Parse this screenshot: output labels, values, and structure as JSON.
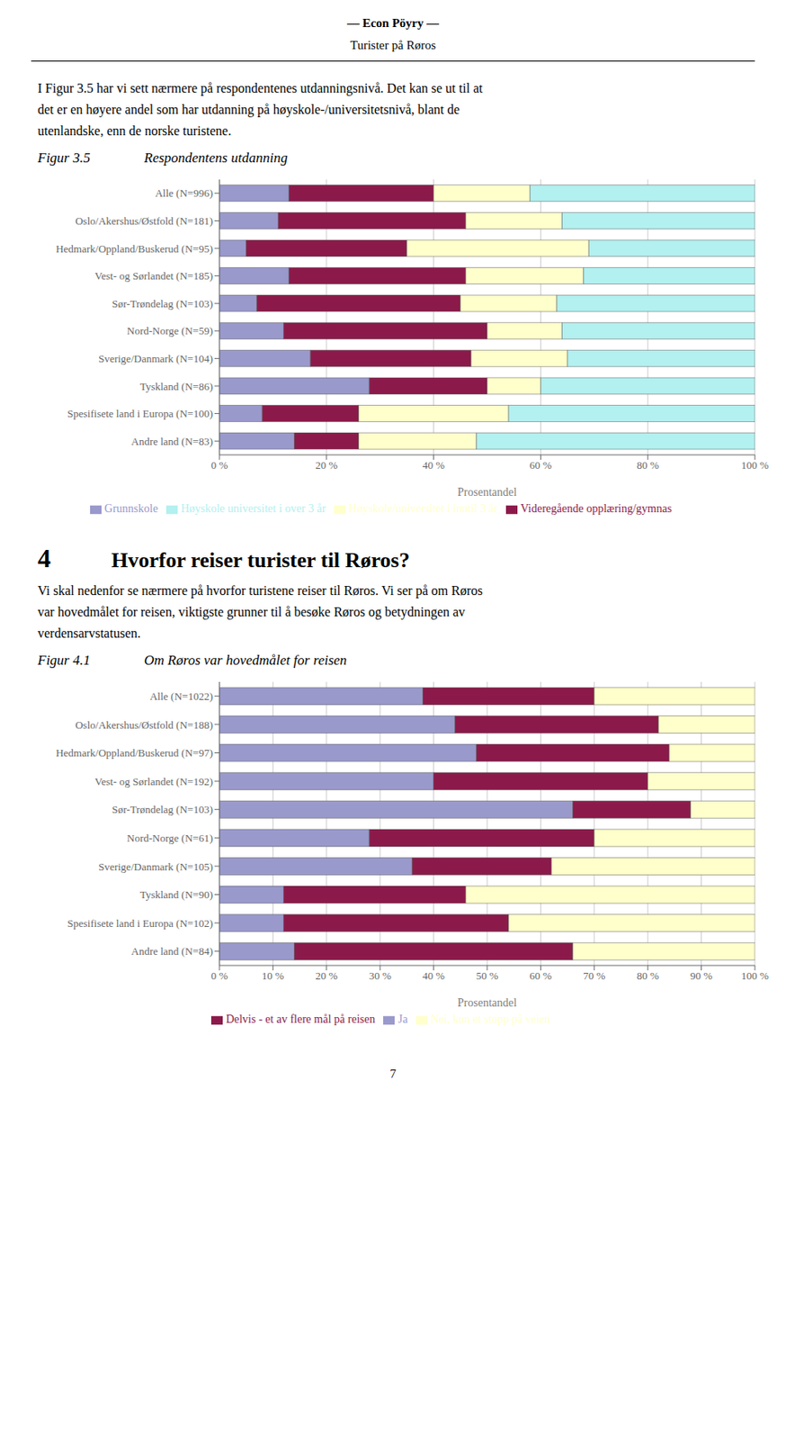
{
  "chart_data": [
    {
      "type": "bar",
      "orientation": "horizontal",
      "stacked": true,
      "subtitle": "Figur 3.5",
      "title": "Respondentens utdanning",
      "annotations": [
        "— Econ Pöyry —",
        "Turister på Røros",
        "I Figur 3.5 har vi sett nærmere på respondentenes utdanningsnivå. Det kan se ut til at",
        "det er en høyere andel som har utdanning på høyskole-/universitetsnivå, blant de",
        "utenlandske, enn de norske turistene."
      ],
      "categories": [
        "Alle (N=996)",
        "Oslo/Akershus/Østfold (N=181)",
        "Hedmark/Oppland/Buskerud (N=95)",
        "Vest- og Sørlandet (N=185)",
        "Sør-Trøndelag (N=103)",
        "Nord-Norge (N=59)",
        "Sverige/Danmark (N=104)",
        "Tyskland (N=86)",
        "Spesifisete land i Europa (N=100)",
        "Andre land (N=83)"
      ],
      "series": [
        {
          "name": "Grunnskole",
          "color": "#9999cc",
          "values": [
            13,
            11,
            5,
            13,
            7,
            12,
            17,
            28,
            8,
            14
          ]
        },
        {
          "name": "Videregående opplæring/gymnas",
          "color": "#8b1a4a",
          "values": [
            27,
            35,
            30,
            33,
            38,
            38,
            30,
            22,
            18,
            12
          ]
        },
        {
          "name": "Høyskole/universitet i inntil 3 år",
          "color": "#ffffcc",
          "values": [
            18,
            18,
            34,
            22,
            18,
            14,
            18,
            10,
            28,
            22
          ]
        },
        {
          "name": "Høyskole universitet i over 3 år",
          "color": "#b3f0f0",
          "values": [
            42,
            36,
            31,
            32,
            37,
            36,
            35,
            40,
            46,
            52
          ]
        }
      ],
      "x_label": "Prosentandel",
      "xlim": [
        0,
        100
      ],
      "xticks": [
        {
          "value": 0,
          "label": "0 %"
        },
        {
          "value": 20,
          "label": "20 %"
        },
        {
          "value": 40,
          "label": "40 %"
        },
        {
          "value": 60,
          "label": "60 %"
        },
        {
          "value": 80,
          "label": "80 %"
        },
        {
          "value": 100,
          "label": "100 %"
        }
      ],
      "grid": true,
      "legend": "bottom"
    },
    {
      "type": "bar",
      "orientation": "horizontal",
      "stacked": true,
      "subtitle": "Figur 4.1",
      "title": "Om Røros var hovedmålet for reisen",
      "annotations": [
        "4",
        "Hvorfor reiser turister til Røros?",
        "Vi skal nedenfor se nærmere på hvorfor turistene reiser til Røros. Vi ser på om Røros",
        "var hovedmålet for reisen, viktigste grunner til å besøke Røros og betydningen av",
        "verdensarvstatusen.",
        "7"
      ],
      "categories": [
        "Alle (N=1022)",
        "Oslo/Akershus/Østfold (N=188)",
        "Hedmark/Oppland/Buskerud (N=97)",
        "Vest- og Sørlandet (N=192)",
        "Sør-Trøndelag (N=103)",
        "Nord-Norge (N=61)",
        "Sverige/Danmark (N=105)",
        "Tyskland (N=90)",
        "Spesifisete land i Europa (N=102)",
        "Andre land (N=84)"
      ],
      "series": [
        {
          "name": "Ja",
          "color": "#9999cc",
          "values": [
            38,
            44,
            48,
            40,
            66,
            28,
            36,
            12,
            12,
            14
          ]
        },
        {
          "name": "Delvis - et av flere mål på reisen",
          "color": "#8b1a4a",
          "values": [
            32,
            38,
            36,
            40,
            22,
            42,
            26,
            34,
            42,
            52
          ]
        },
        {
          "name": "Nei, kun et stopp på veien",
          "color": "#ffffcc",
          "values": [
            30,
            18,
            16,
            20,
            12,
            30,
            38,
            54,
            46,
            34
          ]
        }
      ],
      "x_label": "Prosentandel",
      "xlim": [
        0,
        100
      ],
      "xticks": [
        {
          "value": 0,
          "label": "0 %"
        },
        {
          "value": 10,
          "label": "10 %"
        },
        {
          "value": 20,
          "label": "20 %"
        },
        {
          "value": 30,
          "label": "30 %"
        },
        {
          "value": 40,
          "label": "40 %"
        },
        {
          "value": 50,
          "label": "50 %"
        },
        {
          "value": 60,
          "label": "60 %"
        },
        {
          "value": 70,
          "label": "70 %"
        },
        {
          "value": 80,
          "label": "80 %"
        },
        {
          "value": 90,
          "label": "90 %"
        },
        {
          "value": 100,
          "label": "100 %"
        }
      ],
      "grid": true,
      "legend": "bottom"
    }
  ]
}
